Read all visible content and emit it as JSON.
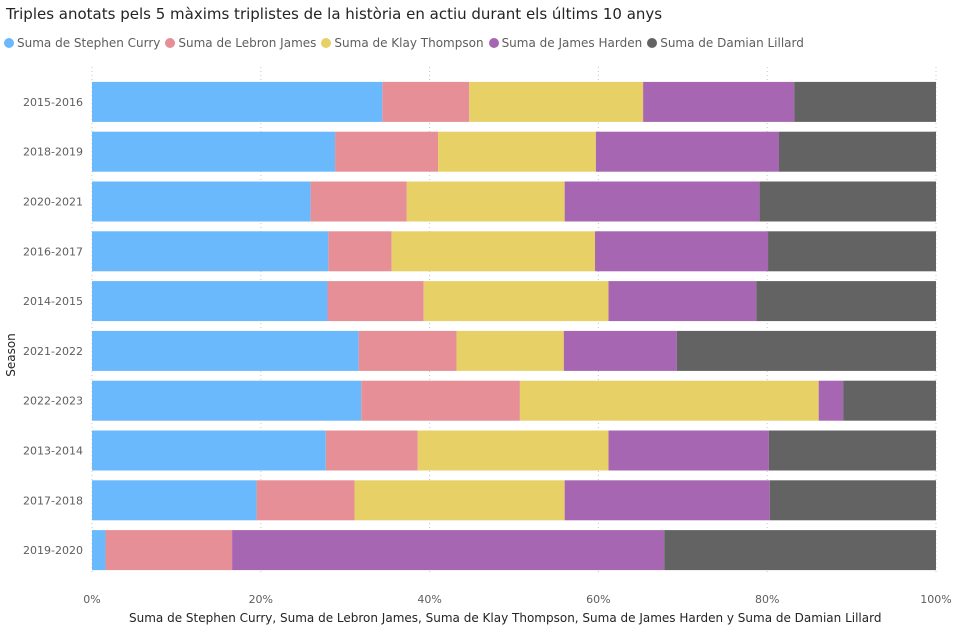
{
  "chart_data": {
    "type": "bar",
    "orientation": "horizontal",
    "stacked": "100%",
    "title": "Triples anotats pels 5 màxims triplistes de la història en actiu durant els últims 10 anys",
    "xlabel": "Suma de Stephen Curry, Suma de Lebron James, Suma de Klay Thompson, Suma de James Harden y Suma de Damian Lillard",
    "ylabel": "Season",
    "xlim": [
      0,
      1
    ],
    "x_ticks": [
      "0%",
      "20%",
      "40%",
      "60%",
      "80%",
      "100%"
    ],
    "legend_position": "top-left",
    "grid": true,
    "categories": [
      "2015-2016",
      "2018-2019",
      "2020-2021",
      "2016-2017",
      "2014-2015",
      "2021-2022",
      "2022-2023",
      "2013-2014",
      "2017-2018",
      "2019-2020"
    ],
    "series": [
      {
        "name": "Suma de Stephen Curry",
        "color": "#6ab9fd",
        "values": [
          0.344,
          0.288,
          0.259,
          0.28,
          0.279,
          0.316,
          0.319,
          0.277,
          0.195,
          0.016
        ]
      },
      {
        "name": "Suma de Lebron James",
        "color": "#e68f97",
        "values": [
          0.103,
          0.122,
          0.114,
          0.075,
          0.114,
          0.116,
          0.188,
          0.109,
          0.116,
          0.15
        ]
      },
      {
        "name": "Suma de Klay Thompson",
        "color": "#e7d167",
        "values": [
          0.206,
          0.187,
          0.187,
          0.241,
          0.219,
          0.127,
          0.354,
          0.226,
          0.249,
          0.0
        ]
      },
      {
        "name": "Suma de James Harden",
        "color": "#a666b1",
        "values": [
          0.179,
          0.217,
          0.231,
          0.205,
          0.175,
          0.134,
          0.029,
          0.19,
          0.243,
          0.512
        ]
      },
      {
        "name": "Suma de Damian Lillard",
        "color": "#636363",
        "values": [
          0.168,
          0.186,
          0.209,
          0.199,
          0.213,
          0.307,
          0.11,
          0.198,
          0.197,
          0.322
        ]
      }
    ]
  }
}
